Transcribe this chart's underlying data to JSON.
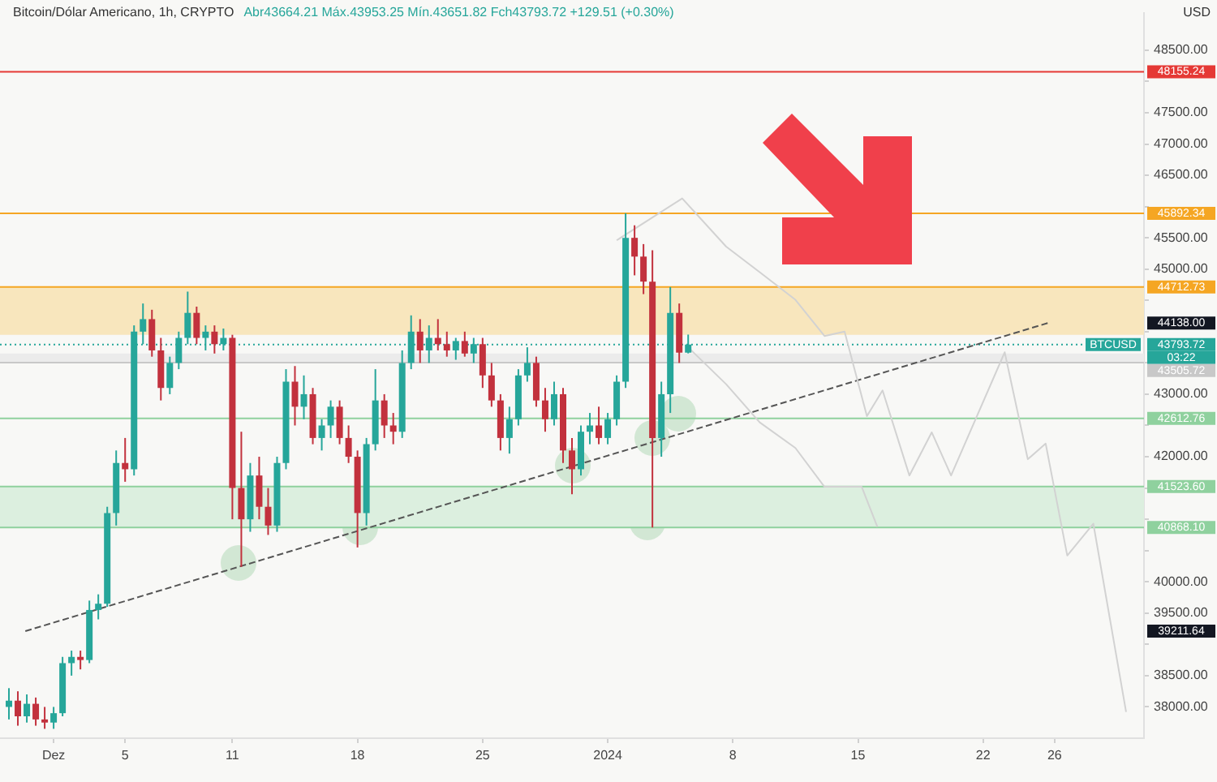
{
  "chart_data": {
    "type": "candlestick",
    "title": "Bitcoin/Dólar Americano, 1h, CRYPTO",
    "subtitle": "Abr43664.21 Máx.43953.25 Mín.43651.82 Fch43793.72 +129.51 (+0.30%)",
    "ylabel": "USD",
    "xlim": [
      "2023-11-28",
      "2024-01-31"
    ],
    "ylim": [
      37500,
      49100
    ],
    "xticks": [
      {
        "value": "2023-12-01",
        "label": "Dez"
      },
      {
        "value": "2023-12-05",
        "label": "5"
      },
      {
        "value": "2023-12-11",
        "label": "11"
      },
      {
        "value": "2023-12-18",
        "label": "18"
      },
      {
        "value": "2023-12-25",
        "label": "25"
      },
      {
        "value": "2024-01-01",
        "label": "2024"
      },
      {
        "value": "2024-01-08",
        "label": "8"
      },
      {
        "value": "2024-01-15",
        "label": "15"
      },
      {
        "value": "2024-01-22",
        "label": "22"
      },
      {
        "value": "2024-01-26",
        "label": "26"
      }
    ],
    "yticks": [
      {
        "value": 38000,
        "label": "38000.00"
      },
      {
        "value": 38500,
        "label": "38500.00"
      },
      {
        "value": 39000,
        "label": null
      },
      {
        "value": 39500,
        "label": "39500.00"
      },
      {
        "value": 40000,
        "label": "40000.00"
      },
      {
        "value": 40500,
        "label": null
      },
      {
        "value": 41000,
        "label": null
      },
      {
        "value": 41500,
        "label": null
      },
      {
        "value": 42000,
        "label": "42000.00"
      },
      {
        "value": 42500,
        "label": null
      },
      {
        "value": 43000,
        "label": "43000.00"
      },
      {
        "value": 43500,
        "label": null
      },
      {
        "value": 44000,
        "label": null
      },
      {
        "value": 44500,
        "label": null
      },
      {
        "value": 45000,
        "label": "45000.00"
      },
      {
        "value": 45500,
        "label": "45500.00"
      },
      {
        "value": 46000,
        "label": null
      },
      {
        "value": 46500,
        "label": "46500.00"
      },
      {
        "value": 47000,
        "label": "47000.00"
      },
      {
        "value": 47500,
        "label": "47500.00"
      },
      {
        "value": 48000,
        "label": null
      },
      {
        "value": 48500,
        "label": "48500.00"
      }
    ],
    "series": [
      {
        "x": [
          "2023-11-28T12:00",
          "2023-11-29T00:00",
          "2023-11-29T12:00",
          "2023-11-30T00:00",
          "2023-11-30T12:00",
          "2023-12-01T00:00",
          "2023-12-01T12:00",
          "2023-12-02T00:00",
          "2023-12-02T12:00",
          "2023-12-03T00:00",
          "2023-12-03T12:00",
          "2023-12-04T00:00",
          "2023-12-04T12:00",
          "2023-12-05T00:00",
          "2023-12-05T12:00",
          "2023-12-06T00:00",
          "2023-12-06T12:00",
          "2023-12-07T00:00",
          "2023-12-07T12:00",
          "2023-12-08T00:00",
          "2023-12-08T12:00",
          "2023-12-09T00:00",
          "2023-12-09T12:00",
          "2023-12-10T00:00",
          "2023-12-10T12:00",
          "2023-12-11T00:00",
          "2023-12-11T12:00",
          "2023-12-12T00:00",
          "2023-12-12T12:00",
          "2023-12-13T00:00",
          "2023-12-13T12:00",
          "2023-12-14T00:00",
          "2023-12-14T12:00",
          "2023-12-15T00:00",
          "2023-12-15T12:00",
          "2023-12-16T00:00",
          "2023-12-16T12:00",
          "2023-12-17T00:00",
          "2023-12-17T12:00",
          "2023-12-18T00:00",
          "2023-12-18T12:00",
          "2023-12-19T00:00",
          "2023-12-19T12:00",
          "2023-12-20T00:00",
          "2023-12-20T12:00",
          "2023-12-21T00:00",
          "2023-12-21T12:00",
          "2023-12-22T00:00",
          "2023-12-22T12:00",
          "2023-12-23T00:00",
          "2023-12-23T12:00",
          "2023-12-24T00:00",
          "2023-12-24T12:00",
          "2023-12-25T00:00",
          "2023-12-25T12:00",
          "2023-12-26T00:00",
          "2023-12-26T12:00",
          "2023-12-27T00:00",
          "2023-12-27T12:00",
          "2023-12-28T00:00",
          "2023-12-28T12:00",
          "2023-12-29T00:00",
          "2023-12-29T12:00",
          "2023-12-30T00:00",
          "2023-12-30T12:00",
          "2023-12-31T00:00",
          "2023-12-31T12:00",
          "2024-01-01T00:00",
          "2024-01-01T12:00",
          "2024-01-02T00:00",
          "2024-01-02T12:00",
          "2024-01-03T00:00",
          "2024-01-03T12:00",
          "2024-01-04T00:00",
          "2024-01-04T12:00",
          "2024-01-05T00:00",
          "2024-01-05T12:00"
        ],
        "ohlc": [
          [
            38000,
            38300,
            37800,
            38100
          ],
          [
            38100,
            38250,
            37700,
            37850
          ],
          [
            37850,
            38200,
            37750,
            38050
          ],
          [
            38050,
            38150,
            37700,
            37800
          ],
          [
            37800,
            38000,
            37650,
            37750
          ],
          [
            37750,
            38000,
            37650,
            37900
          ],
          [
            37900,
            38800,
            37850,
            38700
          ],
          [
            38700,
            38900,
            38500,
            38800
          ],
          [
            38800,
            38900,
            38600,
            38750
          ],
          [
            38750,
            39700,
            38700,
            39550
          ],
          [
            39550,
            39800,
            39400,
            39650
          ],
          [
            39650,
            41200,
            39600,
            41100
          ],
          [
            41100,
            42100,
            40900,
            41900
          ],
          [
            41900,
            42300,
            41600,
            41800
          ],
          [
            41800,
            44100,
            41700,
            44000
          ],
          [
            44000,
            44450,
            43800,
            44200
          ],
          [
            44200,
            44350,
            43600,
            43700
          ],
          [
            43700,
            43900,
            42900,
            43100
          ],
          [
            43100,
            43600,
            43000,
            43500
          ],
          [
            43500,
            44000,
            43400,
            43900
          ],
          [
            43900,
            44640,
            43800,
            44300
          ],
          [
            44300,
            44400,
            43800,
            43900
          ],
          [
            43900,
            44100,
            43700,
            44000
          ],
          [
            44000,
            44100,
            43650,
            43800
          ],
          [
            43800,
            44050,
            43700,
            43900
          ],
          [
            43900,
            43950,
            41000,
            41500
          ],
          [
            41500,
            42400,
            40240,
            41000
          ],
          [
            41000,
            41900,
            40800,
            41700
          ],
          [
            41700,
            42000,
            41000,
            41200
          ],
          [
            41200,
            41500,
            40750,
            40900
          ],
          [
            40900,
            42000,
            40800,
            41900
          ],
          [
            41900,
            43400,
            41800,
            43200
          ],
          [
            43200,
            43450,
            42500,
            42800
          ],
          [
            42800,
            43300,
            42600,
            43000
          ],
          [
            43000,
            43100,
            42200,
            42300
          ],
          [
            42300,
            42600,
            42100,
            42500
          ],
          [
            42500,
            42900,
            42300,
            42800
          ],
          [
            42800,
            42900,
            42200,
            42300
          ],
          [
            42300,
            42500,
            41900,
            42000
          ],
          [
            42000,
            42100,
            40550,
            41100
          ],
          [
            41100,
            42300,
            40900,
            42200
          ],
          [
            42200,
            43400,
            42100,
            42900
          ],
          [
            42900,
            43000,
            42300,
            42500
          ],
          [
            42500,
            42700,
            42200,
            42400
          ],
          [
            42400,
            43700,
            42300,
            43500
          ],
          [
            43500,
            44260,
            43400,
            44000
          ],
          [
            44000,
            44200,
            43500,
            43700
          ],
          [
            43700,
            44100,
            43500,
            43900
          ],
          [
            43900,
            44200,
            43700,
            43800
          ],
          [
            43800,
            44000,
            43600,
            43700
          ],
          [
            43700,
            43900,
            43550,
            43850
          ],
          [
            43850,
            44000,
            43600,
            43650
          ],
          [
            43650,
            43900,
            43500,
            43800
          ],
          [
            43800,
            43900,
            43100,
            43300
          ],
          [
            43300,
            43500,
            42800,
            42900
          ],
          [
            42900,
            43000,
            42100,
            42300
          ],
          [
            42300,
            42800,
            42050,
            42600
          ],
          [
            42600,
            43400,
            42500,
            43300
          ],
          [
            43300,
            43750,
            43200,
            43500
          ],
          [
            43500,
            43600,
            42800,
            42900
          ],
          [
            42900,
            43100,
            42400,
            42600
          ],
          [
            42600,
            43200,
            42500,
            43000
          ],
          [
            43000,
            43100,
            41900,
            42100
          ],
          [
            42100,
            42300,
            41400,
            41800
          ],
          [
            41800,
            42500,
            41700,
            42400
          ],
          [
            42400,
            42700,
            42200,
            42500
          ],
          [
            42500,
            42800,
            42200,
            42300
          ],
          [
            42300,
            42700,
            42200,
            42600
          ],
          [
            42600,
            43300,
            42500,
            43200
          ],
          [
            43200,
            45892.34,
            43100,
            45500
          ],
          [
            45500,
            45700,
            44900,
            45200
          ],
          [
            45200,
            45400,
            44600,
            44800
          ],
          [
            44800,
            45300,
            40868.1,
            42300
          ],
          [
            42300,
            43200,
            42000,
            43000
          ],
          [
            43000,
            44712.73,
            42700,
            44300
          ],
          [
            44300,
            44450,
            43500,
            43664.21
          ],
          [
            43664.21,
            43953.25,
            43651.82,
            43793.72
          ]
        ],
        "colors": [
          "#26a69a",
          "#c2313d",
          "#26a69a",
          "#c2313d",
          "#c2313d",
          "#26a69a",
          "#26a69a",
          "#26a69a",
          "#c2313d",
          "#26a69a",
          "#26a69a",
          "#26a69a",
          "#26a69a",
          "#c2313d",
          "#26a69a",
          "#26a69a",
          "#c2313d",
          "#c2313d",
          "#26a69a",
          "#26a69a",
          "#26a69a",
          "#c2313d",
          "#26a69a",
          "#c2313d",
          "#26a69a",
          "#c2313d",
          "#c2313d",
          "#26a69a",
          "#c2313d",
          "#c2313d",
          "#26a69a",
          "#26a69a",
          "#c2313d",
          "#26a69a",
          "#c2313d",
          "#26a69a",
          "#26a69a",
          "#c2313d",
          "#c2313d",
          "#c2313d",
          "#26a69a",
          "#26a69a",
          "#c2313d",
          "#c2313d",
          "#26a69a",
          "#26a69a",
          "#c2313d",
          "#26a69a",
          "#c2313d",
          "#c2313d",
          "#26a69a",
          "#c2313d",
          "#26a69a",
          "#c2313d",
          "#c2313d",
          "#c2313d",
          "#26a69a",
          "#26a69a",
          "#26a69a",
          "#c2313d",
          "#c2313d",
          "#26a69a",
          "#c2313d",
          "#c2313d",
          "#26a69a",
          "#26a69a",
          "#c2313d",
          "#26a69a",
          "#26a69a",
          "#26a69a",
          "#c2313d",
          "#c2313d",
          "#c2313d",
          "#26a69a",
          "#26a69a",
          "#c2313d",
          "#26a69a"
        ]
      },
      {
        "type": "line",
        "color": "#d2d2d2",
        "x": [
          "2024-01-01T12:00",
          "2024-01-05T04:00",
          "2024-01-07T15:00",
          "2024-01-09T12:00",
          "2024-01-11T12:00",
          "2024-01-13T03:00",
          "2024-01-14T06:00",
          "2024-01-15T12:00",
          "2024-01-16T09:00",
          "2024-01-17T21:00",
          "2024-01-19T03:00",
          "2024-01-20T05:00",
          "2024-01-23T05:00",
          "2024-01-24T12:00",
          "2024-01-25T12:00",
          "2024-01-26T17:00",
          "2024-01-28T04:00",
          "2024-01-30T00:00"
        ],
        "values": [
          45460,
          46130,
          45360,
          44950,
          44510,
          43930,
          44000,
          42650,
          43060,
          41700,
          42390,
          41700,
          43670,
          41960,
          42210,
          40420,
          40930,
          37920
        ]
      },
      {
        "type": "line",
        "color": "#d2d2d2",
        "x": [
          "2024-01-05T12:00",
          "2024-01-07T15:00",
          "2024-01-09T12:00",
          "2024-01-11T12:00",
          "2024-01-13T03:00",
          "2024-01-15T05:00",
          "2024-01-16T02:00"
        ],
        "values": [
          43750,
          43160,
          42550,
          42140,
          41520,
          41520,
          40880
        ]
      },
      {
        "type": "line",
        "color": "#555555",
        "line_style": "dashed",
        "x": [
          "2023-11-29T10:00",
          "2024-01-25T15:00"
        ],
        "values": [
          39211.64,
          44138.0
        ]
      }
    ],
    "ref_lines": [
      {
        "axis": "y",
        "value": 48155.24,
        "label": "48155.24",
        "color": "#e53935"
      },
      {
        "axis": "y",
        "value": 45892.34,
        "label": "45892.34",
        "color": "#f5a623"
      },
      {
        "axis": "y",
        "value": 44712.73,
        "label": "44712.73",
        "color": "#f5a623"
      },
      {
        "axis": "y",
        "value": 43793.72,
        "label": "43793.72",
        "color": "#26a69a",
        "line_style": "dotted"
      },
      {
        "axis": "y",
        "value": 43505.72,
        "label": "43505.72",
        "color": "#c8c8c8"
      },
      {
        "axis": "y",
        "value": 42612.76,
        "label": "42612.76",
        "color": "#8fd19e"
      },
      {
        "axis": "y",
        "value": 41523.6,
        "label": "41523.60",
        "color": "#8fd19e"
      },
      {
        "axis": "y",
        "value": 40868.1,
        "label": "40868.10",
        "color": "#8fd19e"
      }
    ],
    "bands": [
      {
        "axis": "y",
        "from": 43950,
        "to": 44712.73,
        "color": "#f8e6bd"
      },
      {
        "axis": "y",
        "from": 40868.1,
        "to": 41523.6,
        "color": "#dcefdf"
      },
      {
        "axis": "y",
        "from": 43505.72,
        "to": 43650,
        "color": "#ebebeb"
      }
    ],
    "annotations": [
      "39211.64",
      "44138.00",
      {
        "text": "BTCUSD",
        "y": 43793.72
      },
      "03:22"
    ],
    "grid": false,
    "legend": false
  }
}
